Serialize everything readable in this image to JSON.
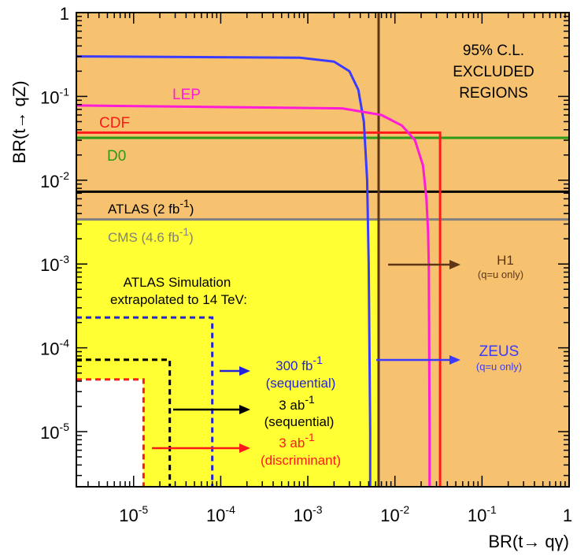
{
  "chart_data": {
    "type": "line",
    "title": "",
    "xlabel": "BR(t→ qγ)",
    "ylabel": "BR(t→ qZ)",
    "xscale": "log",
    "yscale": "log",
    "xlim": [
      2.2e-06,
      1
    ],
    "ylim": [
      2.2e-06,
      1
    ],
    "x_ticks": [
      {
        "base": "10",
        "exp": "-5"
      },
      {
        "base": "10",
        "exp": "-4"
      },
      {
        "base": "10",
        "exp": "-3"
      },
      {
        "base": "10",
        "exp": "-2"
      },
      {
        "base": "10",
        "exp": "-1"
      },
      {
        "base": "1",
        "exp": ""
      }
    ],
    "y_ticks": [
      {
        "base": "10",
        "exp": "-5"
      },
      {
        "base": "10",
        "exp": "-4"
      },
      {
        "base": "10",
        "exp": "-3"
      },
      {
        "base": "10",
        "exp": "-2"
      },
      {
        "base": "10",
        "exp": "-1"
      },
      {
        "base": "1",
        "exp": ""
      }
    ],
    "regions": [
      {
        "name": "excluded",
        "color": "#f7c26f",
        "label_lines": [
          "95% C.L.",
          "EXCLUDED",
          "REGIONS"
        ]
      },
      {
        "name": "allowed",
        "color": "#ffff33",
        "x_max": 0.0065,
        "y_max": 0.0034
      },
      {
        "name": "projected-3ab-discriminant",
        "color": "#ffffff",
        "x_max": 1.3e-05,
        "y_max": 4.2e-05
      }
    ],
    "series": [
      {
        "name": "LEP",
        "color": "#ff1cd7",
        "kind": "curve",
        "y_plateau": 0.078,
        "x_limit": 0.025,
        "points": [
          [
            2.2e-06,
            0.078
          ],
          [
            0.0025,
            0.072
          ],
          [
            0.007,
            0.06
          ],
          [
            0.012,
            0.045
          ],
          [
            0.017,
            0.03
          ],
          [
            0.021,
            0.015
          ],
          [
            0.023,
            0.006
          ],
          [
            0.024,
            0.0025
          ],
          [
            0.0245,
            0.001
          ],
          [
            0.025,
            1e-05
          ],
          [
            0.025,
            2.2e-06
          ]
        ]
      },
      {
        "name": "ZEUS",
        "color": "#3b3bff",
        "kind": "curve",
        "y_plateau": 0.3,
        "x_limit": 0.0052,
        "points": [
          [
            2.2e-06,
            0.3
          ],
          [
            0.0008,
            0.29
          ],
          [
            0.002,
            0.26
          ],
          [
            0.003,
            0.2
          ],
          [
            0.0038,
            0.12
          ],
          [
            0.0044,
            0.05
          ],
          [
            0.0048,
            0.01
          ],
          [
            0.005,
            0.001
          ],
          [
            0.0052,
            1e-05
          ],
          [
            0.0052,
            2.2e-06
          ]
        ]
      },
      {
        "name": "CDF",
        "color": "#ff1a1a",
        "kind": "step",
        "y": 0.037,
        "x": 0.033
      },
      {
        "name": "D0",
        "color": "#2a9a18",
        "kind": "hline",
        "y": 0.032
      },
      {
        "name": "ATLAS (2 fb-1)",
        "color": "#000000",
        "kind": "hline",
        "y": 0.0073
      },
      {
        "name": "CMS (4.6 fb-1)",
        "color": "#808080",
        "kind": "hline",
        "y": 0.0034
      },
      {
        "name": "H1",
        "color": "#5c3617",
        "kind": "vline",
        "x": 0.0065
      },
      {
        "name": "300 fb-1 (sequential)",
        "color": "#2323d9",
        "kind": "dashed-step",
        "x": 8e-05,
        "y": 0.00023
      },
      {
        "name": "3 ab-1 (sequential)",
        "color": "#000000",
        "kind": "dashed-step",
        "x": 2.6e-05,
        "y": 7.2e-05
      },
      {
        "name": "3 ab-1 (discriminant)",
        "color": "#ff1a1a",
        "kind": "dashed-step",
        "x": 1.3e-05,
        "y": 4.2e-05
      }
    ],
    "labels": {
      "lep": "LEP",
      "cdf": "CDF",
      "d0": "D0",
      "atlas_2fb": {
        "text": "ATLAS (2 fb",
        "sup": "-1",
        "tail": ")"
      },
      "cms": {
        "text": "CMS (4.6 fb",
        "sup": "-1",
        "tail": ")"
      },
      "h1": "H1",
      "h1_note": "(q=u only)",
      "zeus": "ZEUS",
      "zeus_note": "(q=u only)",
      "sim_line1": "ATLAS Simulation",
      "sim_line2": "extrapolated to 14 TeV:",
      "proj_300": {
        "text": "300 fb",
        "sup": "-1",
        "line2": "(sequential)"
      },
      "proj_3ab_seq": {
        "text": "3 ab",
        "sup": "-1",
        "line2": "(sequential)"
      },
      "proj_3ab_disc": {
        "text": "3 ab",
        "sup": "-1",
        "line2": "(discriminant)"
      }
    }
  }
}
